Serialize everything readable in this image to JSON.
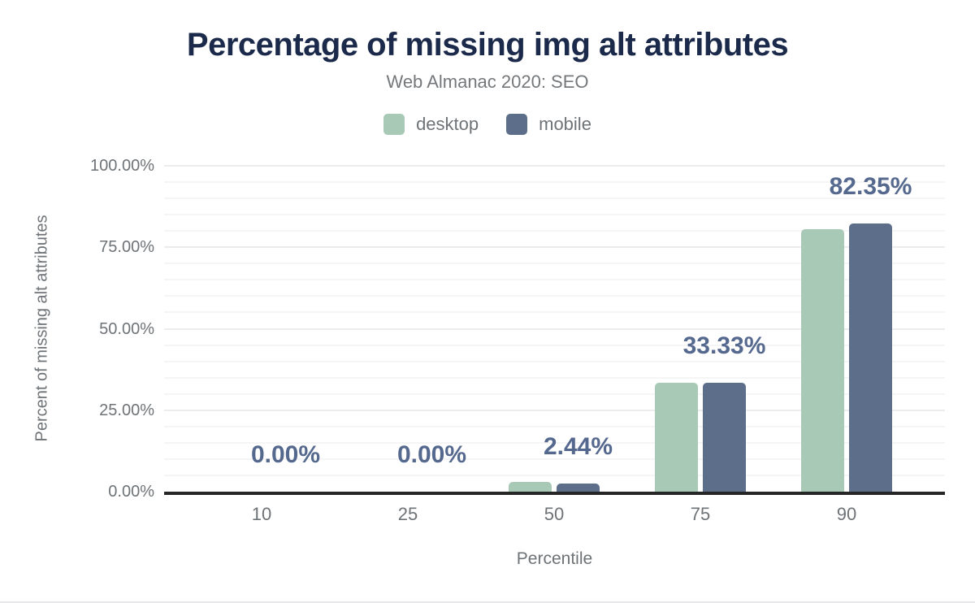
{
  "title": "Percentage of missing img alt attributes",
  "subtitle": "Web Almanac 2020: SEO",
  "colors": {
    "title": "#1b2a4a",
    "subtitle": "#75787b",
    "axis_text": "#6e7377",
    "axis_line": "#262626",
    "bar_label": "#55688e",
    "desktop": "#a9c9b7",
    "mobile": "#5c6e8a"
  },
  "chart_data": {
    "type": "bar",
    "title": "Percentage of missing img alt attributes",
    "subtitle": "Web Almanac 2020: SEO",
    "categories": [
      "10",
      "25",
      "50",
      "75",
      "90"
    ],
    "series": [
      {
        "name": "desktop",
        "color": "#a9c9b7",
        "values": [
          0,
          0,
          3.0,
          33.33,
          80.5
        ]
      },
      {
        "name": "mobile",
        "color": "#5c6e8a",
        "values": [
          0,
          0,
          2.44,
          33.33,
          82.35
        ]
      }
    ],
    "data_labels": [
      "0.00%",
      "0.00%",
      "2.44%",
      "33.33%",
      "82.35%"
    ],
    "data_labels_follow_series": "mobile",
    "xlabel": "Percentile",
    "ylabel": "Percent of missing alt attributes",
    "y_ticks": [
      {
        "label": "0.00%",
        "value": 0
      },
      {
        "label": "25.00%",
        "value": 25
      },
      {
        "label": "50.00%",
        "value": 50
      },
      {
        "label": "75.00%",
        "value": 75
      },
      {
        "label": "100.00%",
        "value": 100
      }
    ],
    "ylim": [
      0,
      100
    ],
    "grid": {
      "minor_step": 5,
      "major_step": 25
    },
    "legend_position": "top"
  }
}
